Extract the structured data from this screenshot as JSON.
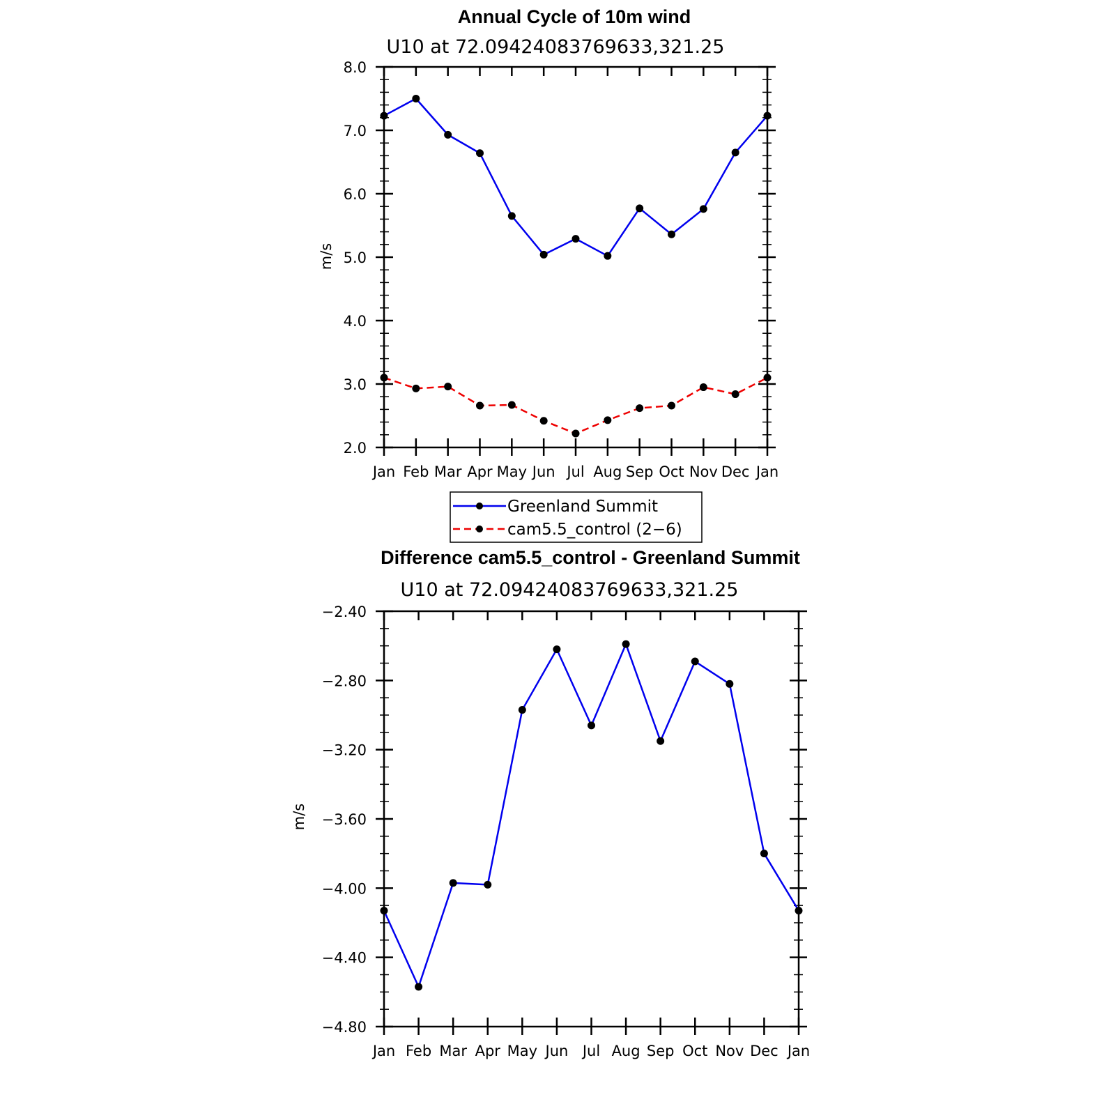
{
  "chart_data": [
    {
      "type": "line",
      "title": "Annual Cycle of 10m wind",
      "subtitle": "U10  at  72.09424083769633,321.25",
      "ylabel": "m/s",
      "xlabel": "",
      "categories": [
        "Jan",
        "Feb",
        "Mar",
        "Apr",
        "May",
        "Jun",
        "Jul",
        "Aug",
        "Sep",
        "Oct",
        "Nov",
        "Dec",
        "Jan"
      ],
      "ylim": [
        2.0,
        8.0
      ],
      "yticks": [
        "2.0",
        "3.0",
        "4.0",
        "5.0",
        "6.0",
        "7.0",
        "8.0"
      ],
      "grid": false,
      "legend_position": "bottom",
      "series": [
        {
          "name": "Greenland Summit",
          "color": "#0000ee",
          "dash": "solid",
          "marker": "dot",
          "values": [
            7.23,
            7.5,
            6.93,
            6.64,
            5.65,
            5.04,
            5.29,
            5.02,
            5.77,
            5.36,
            5.76,
            6.65,
            7.23
          ]
        },
        {
          "name": "cam5.5_control (2−6)",
          "color": "#ee0000",
          "dash": "dashed",
          "marker": "dot",
          "values": [
            3.1,
            2.93,
            2.96,
            2.66,
            2.67,
            2.42,
            2.22,
            2.43,
            2.62,
            2.66,
            2.95,
            2.84,
            3.1
          ]
        }
      ]
    },
    {
      "type": "line",
      "title": "Difference cam5.5_control - Greenland Summit",
      "subtitle": "U10  at  72.09424083769633,321.25",
      "ylabel": "m/s",
      "xlabel": "",
      "categories": [
        "Jan",
        "Feb",
        "Mar",
        "Apr",
        "May",
        "Jun",
        "Jul",
        "Aug",
        "Sep",
        "Oct",
        "Nov",
        "Dec",
        "Jan"
      ],
      "ylim": [
        -4.8,
        -2.4
      ],
      "yticks": [
        "−4.80",
        "−4.40",
        "−4.00",
        "−3.60",
        "−3.20",
        "−2.80",
        "−2.40"
      ],
      "grid": false,
      "series": [
        {
          "name": "",
          "color": "#0000ee",
          "dash": "solid",
          "marker": "dot",
          "values": [
            -4.13,
            -4.57,
            -3.97,
            -3.98,
            -2.97,
            -2.62,
            -3.06,
            -2.59,
            -3.15,
            -2.69,
            -2.82,
            -3.8,
            -4.13
          ]
        }
      ]
    }
  ]
}
